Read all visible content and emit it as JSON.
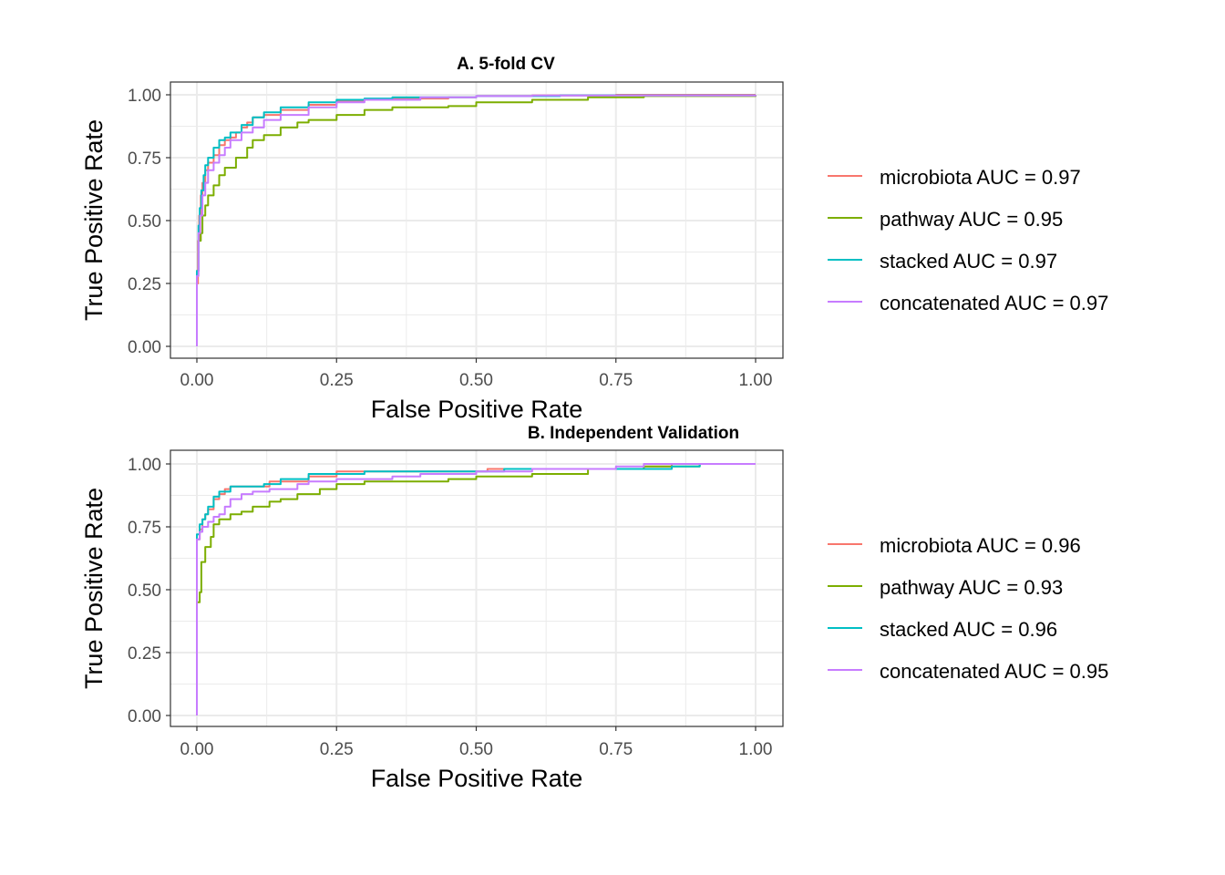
{
  "chart_data": [
    {
      "type": "line",
      "title": "A. 5-fold CV",
      "xlabel": "False Positive Rate",
      "ylabel": "True Positive Rate",
      "xlim": [
        0,
        1
      ],
      "ylim": [
        0,
        1
      ],
      "x_ticks": [
        "0.00",
        "0.25",
        "0.50",
        "0.75",
        "1.00"
      ],
      "y_ticks": [
        "0.00",
        "0.25",
        "0.50",
        "0.75",
        "1.00"
      ],
      "grid": true,
      "legend_position": "right",
      "series": [
        {
          "name": "microbiota AUC = 0.97",
          "color": "#F8766D",
          "points": [
            [
              0,
              0
            ],
            [
              0,
              0.25
            ],
            [
              0.002,
              0.42
            ],
            [
              0.004,
              0.52
            ],
            [
              0.007,
              0.6
            ],
            [
              0.01,
              0.65
            ],
            [
              0.015,
              0.7
            ],
            [
              0.02,
              0.73
            ],
            [
              0.03,
              0.76
            ],
            [
              0.04,
              0.8
            ],
            [
              0.05,
              0.82
            ],
            [
              0.06,
              0.83
            ],
            [
              0.07,
              0.85
            ],
            [
              0.08,
              0.87
            ],
            [
              0.09,
              0.89
            ],
            [
              0.1,
              0.91
            ],
            [
              0.12,
              0.92
            ],
            [
              0.15,
              0.94
            ],
            [
              0.2,
              0.96
            ],
            [
              0.25,
              0.975
            ],
            [
              0.3,
              0.98
            ],
            [
              0.35,
              0.985
            ],
            [
              0.45,
              0.99
            ],
            [
              0.5,
              0.995
            ],
            [
              0.6,
              0.997
            ],
            [
              0.75,
              1.0
            ],
            [
              1.0,
              1.0
            ]
          ]
        },
        {
          "name": "pathway AUC = 0.95",
          "color": "#7CAE00",
          "points": [
            [
              0,
              0
            ],
            [
              0,
              0.3
            ],
            [
              0.003,
              0.42
            ],
            [
              0.007,
              0.45
            ],
            [
              0.01,
              0.52
            ],
            [
              0.015,
              0.56
            ],
            [
              0.02,
              0.6
            ],
            [
              0.03,
              0.64
            ],
            [
              0.04,
              0.68
            ],
            [
              0.05,
              0.71
            ],
            [
              0.07,
              0.75
            ],
            [
              0.09,
              0.79
            ],
            [
              0.1,
              0.82
            ],
            [
              0.12,
              0.84
            ],
            [
              0.15,
              0.87
            ],
            [
              0.18,
              0.89
            ],
            [
              0.2,
              0.9
            ],
            [
              0.25,
              0.92
            ],
            [
              0.3,
              0.94
            ],
            [
              0.35,
              0.95
            ],
            [
              0.45,
              0.955
            ],
            [
              0.5,
              0.97
            ],
            [
              0.6,
              0.98
            ],
            [
              0.7,
              0.99
            ],
            [
              0.8,
              0.995
            ],
            [
              1.0,
              1.0
            ]
          ]
        },
        {
          "name": "stacked AUC = 0.97",
          "color": "#00BFC4",
          "points": [
            [
              0,
              0
            ],
            [
              0,
              0.3
            ],
            [
              0.003,
              0.48
            ],
            [
              0.005,
              0.55
            ],
            [
              0.008,
              0.62
            ],
            [
              0.012,
              0.68
            ],
            [
              0.015,
              0.72
            ],
            [
              0.02,
              0.75
            ],
            [
              0.03,
              0.79
            ],
            [
              0.04,
              0.82
            ],
            [
              0.05,
              0.83
            ],
            [
              0.06,
              0.85
            ],
            [
              0.08,
              0.88
            ],
            [
              0.1,
              0.91
            ],
            [
              0.12,
              0.93
            ],
            [
              0.15,
              0.95
            ],
            [
              0.2,
              0.97
            ],
            [
              0.25,
              0.98
            ],
            [
              0.3,
              0.985
            ],
            [
              0.35,
              0.99
            ],
            [
              0.5,
              0.995
            ],
            [
              0.65,
              0.998
            ],
            [
              1.0,
              1.0
            ]
          ]
        },
        {
          "name": "concatenated AUC = 0.97",
          "color": "#C77CFF",
          "points": [
            [
              0,
              0
            ],
            [
              0,
              0.28
            ],
            [
              0.003,
              0.45
            ],
            [
              0.006,
              0.52
            ],
            [
              0.01,
              0.6
            ],
            [
              0.015,
              0.65
            ],
            [
              0.02,
              0.7
            ],
            [
              0.03,
              0.73
            ],
            [
              0.04,
              0.76
            ],
            [
              0.05,
              0.79
            ],
            [
              0.06,
              0.82
            ],
            [
              0.08,
              0.85
            ],
            [
              0.1,
              0.87
            ],
            [
              0.12,
              0.9
            ],
            [
              0.15,
              0.92
            ],
            [
              0.2,
              0.95
            ],
            [
              0.25,
              0.97
            ],
            [
              0.3,
              0.98
            ],
            [
              0.4,
              0.99
            ],
            [
              0.5,
              0.995
            ],
            [
              0.6,
              0.997
            ],
            [
              1.0,
              1.0
            ]
          ]
        }
      ]
    },
    {
      "type": "line",
      "title": "B. Independent Validation",
      "xlabel": "False Positive Rate",
      "ylabel": "True Positive Rate",
      "xlim": [
        0,
        1
      ],
      "ylim": [
        0,
        1
      ],
      "x_ticks": [
        "0.00",
        "0.25",
        "0.50",
        "0.75",
        "1.00"
      ],
      "y_ticks": [
        "0.00",
        "0.25",
        "0.50",
        "0.75",
        "1.00"
      ],
      "grid": true,
      "legend_position": "right",
      "series": [
        {
          "name": "microbiota AUC = 0.96",
          "color": "#F8766D",
          "points": [
            [
              0,
              0
            ],
            [
              0,
              0.7
            ],
            [
              0.005,
              0.74
            ],
            [
              0.01,
              0.78
            ],
            [
              0.015,
              0.8
            ],
            [
              0.02,
              0.82
            ],
            [
              0.03,
              0.86
            ],
            [
              0.04,
              0.88
            ],
            [
              0.05,
              0.9
            ],
            [
              0.06,
              0.91
            ],
            [
              0.1,
              0.91
            ],
            [
              0.13,
              0.93
            ],
            [
              0.2,
              0.95
            ],
            [
              0.25,
              0.97
            ],
            [
              0.35,
              0.97
            ],
            [
              0.5,
              0.97
            ],
            [
              0.52,
              0.98
            ],
            [
              0.7,
              0.98
            ],
            [
              0.8,
              0.99
            ],
            [
              0.85,
              1.0
            ],
            [
              1.0,
              1.0
            ]
          ]
        },
        {
          "name": "pathway AUC = 0.93",
          "color": "#7CAE00",
          "points": [
            [
              0,
              0
            ],
            [
              0,
              0.45
            ],
            [
              0.005,
              0.49
            ],
            [
              0.008,
              0.61
            ],
            [
              0.015,
              0.67
            ],
            [
              0.025,
              0.71
            ],
            [
              0.03,
              0.76
            ],
            [
              0.04,
              0.78
            ],
            [
              0.06,
              0.8
            ],
            [
              0.08,
              0.81
            ],
            [
              0.1,
              0.83
            ],
            [
              0.13,
              0.85
            ],
            [
              0.15,
              0.86
            ],
            [
              0.18,
              0.88
            ],
            [
              0.2,
              0.88
            ],
            [
              0.22,
              0.9
            ],
            [
              0.25,
              0.92
            ],
            [
              0.3,
              0.93
            ],
            [
              0.35,
              0.93
            ],
            [
              0.45,
              0.94
            ],
            [
              0.5,
              0.95
            ],
            [
              0.6,
              0.96
            ],
            [
              0.7,
              0.98
            ],
            [
              0.8,
              0.99
            ],
            [
              0.9,
              1.0
            ],
            [
              1.0,
              1.0
            ]
          ]
        },
        {
          "name": "stacked AUC = 0.96",
          "color": "#00BFC4",
          "points": [
            [
              0,
              0
            ],
            [
              0,
              0.72
            ],
            [
              0.005,
              0.76
            ],
            [
              0.01,
              0.78
            ],
            [
              0.015,
              0.8
            ],
            [
              0.02,
              0.83
            ],
            [
              0.03,
              0.87
            ],
            [
              0.04,
              0.89
            ],
            [
              0.06,
              0.91
            ],
            [
              0.1,
              0.91
            ],
            [
              0.12,
              0.92
            ],
            [
              0.15,
              0.94
            ],
            [
              0.2,
              0.96
            ],
            [
              0.25,
              0.96
            ],
            [
              0.3,
              0.97
            ],
            [
              0.5,
              0.97
            ],
            [
              0.55,
              0.98
            ],
            [
              0.75,
              0.98
            ],
            [
              0.85,
              0.99
            ],
            [
              0.9,
              1.0
            ],
            [
              1.0,
              1.0
            ]
          ]
        },
        {
          "name": "concatenated AUC = 0.95",
          "color": "#C77CFF",
          "points": [
            [
              0,
              0
            ],
            [
              0,
              0.7
            ],
            [
              0.005,
              0.73
            ],
            [
              0.01,
              0.75
            ],
            [
              0.02,
              0.77
            ],
            [
              0.03,
              0.79
            ],
            [
              0.04,
              0.8
            ],
            [
              0.05,
              0.83
            ],
            [
              0.06,
              0.86
            ],
            [
              0.08,
              0.88
            ],
            [
              0.1,
              0.89
            ],
            [
              0.13,
              0.9
            ],
            [
              0.18,
              0.92
            ],
            [
              0.2,
              0.93
            ],
            [
              0.25,
              0.94
            ],
            [
              0.35,
              0.95
            ],
            [
              0.4,
              0.96
            ],
            [
              0.5,
              0.97
            ],
            [
              0.6,
              0.98
            ],
            [
              0.75,
              0.99
            ],
            [
              0.8,
              1.0
            ],
            [
              1.0,
              1.0
            ]
          ]
        }
      ]
    }
  ]
}
